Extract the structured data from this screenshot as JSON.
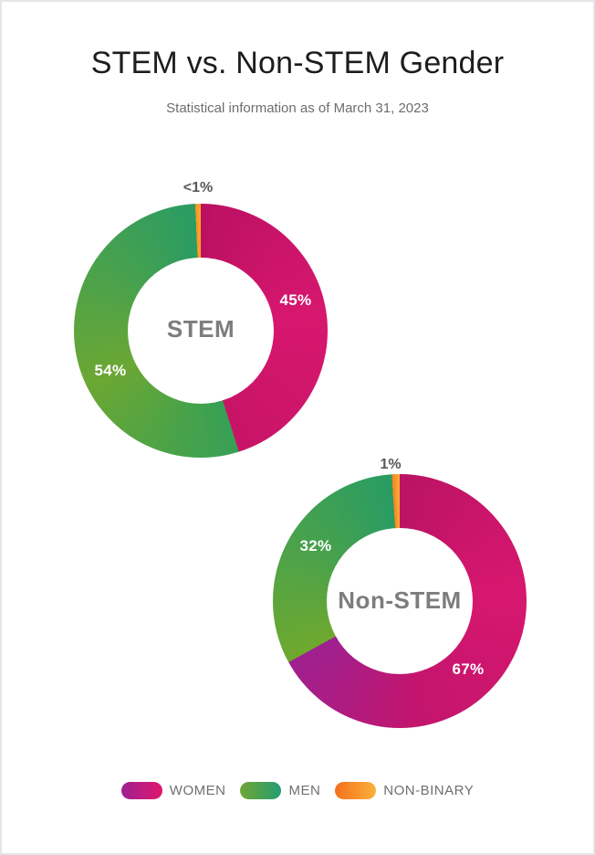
{
  "header": {
    "title": "STEM vs. Non-STEM Gender",
    "subtitle": "Statistical information as of March 31, 2023"
  },
  "chart_data": [
    {
      "type": "pie",
      "subtype": "donut",
      "title": "STEM",
      "categories": [
        "Women",
        "Men",
        "Non-binary"
      ],
      "values": [
        45,
        54,
        0.7
      ],
      "labels": [
        "45%",
        "54%",
        "<1%"
      ],
      "callout": "<1%",
      "slice_gradients": [
        [
          [
            0,
            "#bb1162"
          ],
          [
            0.5,
            "#d7176f"
          ],
          [
            1,
            "#c81466"
          ]
        ],
        [
          [
            0,
            "#36a055"
          ],
          [
            0.42,
            "#6ba733"
          ],
          [
            1,
            "#2a9c63"
          ]
        ],
        [
          [
            0,
            "#f7941e"
          ],
          [
            1,
            "#fbab2f"
          ]
        ]
      ]
    },
    {
      "type": "pie",
      "subtype": "donut",
      "title": "Non-STEM",
      "categories": [
        "Women",
        "Men",
        "Non-binary"
      ],
      "values": [
        67,
        32,
        1
      ],
      "labels": [
        "67%",
        "32%",
        "1%"
      ],
      "callout": "1%",
      "slice_gradients": [
        [
          [
            0,
            "#bb1364"
          ],
          [
            0.35,
            "#d7176f"
          ],
          [
            0.7,
            "#c4156d"
          ],
          [
            1,
            "#9e2190"
          ]
        ],
        [
          [
            0,
            "#6fa92e"
          ],
          [
            0.5,
            "#4aa24b"
          ],
          [
            1,
            "#299c63"
          ]
        ],
        [
          [
            0,
            "#f58220"
          ],
          [
            1,
            "#fbb03b"
          ]
        ]
      ]
    }
  ],
  "legend": {
    "text_color": "#6f6f6f",
    "items": [
      {
        "label": "WOMEN",
        "gradient": [
          "#9c2191",
          "#e0176e"
        ]
      },
      {
        "label": "MEN",
        "gradient": [
          "#6fa634",
          "#239d71"
        ]
      },
      {
        "label": "NON-BINARY",
        "gradient": [
          "#f4701d",
          "#fbb13a"
        ]
      }
    ]
  },
  "colors": {
    "background": "#ffffff",
    "border": "#e4e5e7",
    "title_text": "#1d1d1f",
    "subtitle_text": "#6d6d6d",
    "center_label_text": "#7c7d7f",
    "callout_text": "#58595b",
    "slice_label_text": "#ffffff"
  }
}
